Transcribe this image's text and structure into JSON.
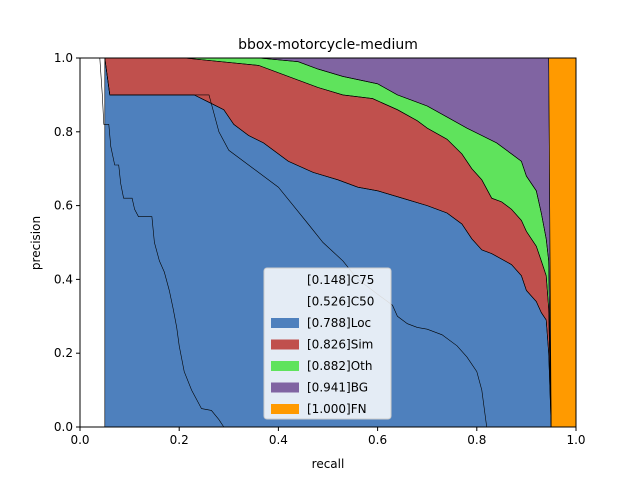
{
  "chart_data": {
    "type": "area",
    "title": "bbox-motorcycle-medium",
    "xlabel": "recall",
    "ylabel": "precision",
    "xlim": [
      0,
      1
    ],
    "ylim": [
      0,
      1
    ],
    "xticks": [
      "0.0",
      "0.2",
      "0.4",
      "0.6",
      "0.8",
      "1.0"
    ],
    "yticks": [
      "0.0",
      "0.2",
      "0.4",
      "0.6",
      "0.8",
      "1.0"
    ],
    "legend_position": "lower center",
    "series": [
      {
        "name": "[0.148]C75",
        "fill": null,
        "points": [
          [
            0.04,
            1.0
          ],
          [
            0.045,
            0.9
          ],
          [
            0.048,
            0.82
          ],
          [
            0.058,
            0.82
          ],
          [
            0.062,
            0.76
          ],
          [
            0.07,
            0.71
          ],
          [
            0.078,
            0.71
          ],
          [
            0.082,
            0.66
          ],
          [
            0.088,
            0.62
          ],
          [
            0.105,
            0.62
          ],
          [
            0.11,
            0.59
          ],
          [
            0.118,
            0.57
          ],
          [
            0.145,
            0.57
          ],
          [
            0.15,
            0.5
          ],
          [
            0.16,
            0.45
          ],
          [
            0.17,
            0.42
          ],
          [
            0.18,
            0.37
          ],
          [
            0.188,
            0.32
          ],
          [
            0.195,
            0.27
          ],
          [
            0.2,
            0.22
          ],
          [
            0.21,
            0.15
          ],
          [
            0.225,
            0.1
          ],
          [
            0.245,
            0.05
          ],
          [
            0.265,
            0.045
          ],
          [
            0.28,
            0.02
          ],
          [
            0.29,
            0.0
          ]
        ]
      },
      {
        "name": "[0.526]C50",
        "fill": null,
        "points": [
          [
            0.05,
            1.0
          ],
          [
            0.06,
            0.9
          ],
          [
            0.26,
            0.9
          ],
          [
            0.28,
            0.8
          ],
          [
            0.3,
            0.75
          ],
          [
            0.35,
            0.7
          ],
          [
            0.4,
            0.65
          ],
          [
            0.43,
            0.6
          ],
          [
            0.46,
            0.55
          ],
          [
            0.49,
            0.5
          ],
          [
            0.53,
            0.45
          ],
          [
            0.56,
            0.4
          ],
          [
            0.58,
            0.38
          ],
          [
            0.6,
            0.36
          ],
          [
            0.62,
            0.34
          ],
          [
            0.63,
            0.33
          ],
          [
            0.64,
            0.3
          ],
          [
            0.65,
            0.29
          ],
          [
            0.66,
            0.28
          ],
          [
            0.68,
            0.27
          ],
          [
            0.7,
            0.265
          ],
          [
            0.73,
            0.25
          ],
          [
            0.76,
            0.22
          ],
          [
            0.78,
            0.19
          ],
          [
            0.8,
            0.15
          ],
          [
            0.81,
            0.1
          ],
          [
            0.82,
            0.0
          ]
        ]
      },
      {
        "name": "[0.788]Loc",
        "color": "#4e80bd",
        "points": [
          [
            0.05,
            1.0
          ],
          [
            0.06,
            0.9
          ],
          [
            0.26,
            0.9
          ],
          [
            0.28,
            0.8
          ],
          [
            0.3,
            0.75
          ],
          [
            0.35,
            0.7
          ],
          [
            0.4,
            0.65
          ],
          [
            0.43,
            0.6
          ],
          [
            0.46,
            0.55
          ],
          [
            0.49,
            0.5
          ],
          [
            0.53,
            0.45
          ],
          [
            0.56,
            0.4
          ],
          [
            0.58,
            0.38
          ],
          [
            0.6,
            0.36
          ],
          [
            0.62,
            0.34
          ],
          [
            0.63,
            0.33
          ],
          [
            0.64,
            0.3
          ],
          [
            0.65,
            0.29
          ],
          [
            0.66,
            0.28
          ],
          [
            0.68,
            0.27
          ],
          [
            0.7,
            0.265
          ],
          [
            0.73,
            0.25
          ],
          [
            0.76,
            0.22
          ],
          [
            0.78,
            0.19
          ],
          [
            0.8,
            0.15
          ],
          [
            0.81,
            0.1
          ],
          [
            0.82,
            0.0
          ]
        ],
        "upper": [
          [
            0.05,
            1.0
          ],
          [
            0.06,
            0.9
          ],
          [
            0.23,
            0.9
          ],
          [
            0.26,
            0.88
          ],
          [
            0.29,
            0.86
          ],
          [
            0.31,
            0.82
          ],
          [
            0.34,
            0.79
          ],
          [
            0.37,
            0.77
          ],
          [
            0.42,
            0.72
          ],
          [
            0.47,
            0.69
          ],
          [
            0.52,
            0.67
          ],
          [
            0.56,
            0.65
          ],
          [
            0.6,
            0.64
          ],
          [
            0.65,
            0.62
          ],
          [
            0.7,
            0.6
          ],
          [
            0.74,
            0.58
          ],
          [
            0.77,
            0.55
          ],
          [
            0.79,
            0.51
          ],
          [
            0.81,
            0.48
          ],
          [
            0.83,
            0.47
          ],
          [
            0.87,
            0.44
          ],
          [
            0.89,
            0.41
          ],
          [
            0.9,
            0.37
          ],
          [
            0.92,
            0.34
          ],
          [
            0.93,
            0.31
          ],
          [
            0.94,
            0.29
          ],
          [
            0.945,
            0.2
          ],
          [
            0.95,
            0.0
          ]
        ]
      },
      {
        "name": "[0.826]Sim",
        "color": "#c0504d",
        "upper": [
          [
            0.05,
            1.0
          ],
          [
            0.06,
            1.0
          ],
          [
            0.21,
            1.0
          ],
          [
            0.36,
            0.98
          ],
          [
            0.44,
            0.94
          ],
          [
            0.48,
            0.92
          ],
          [
            0.53,
            0.9
          ],
          [
            0.59,
            0.89
          ],
          [
            0.64,
            0.86
          ],
          [
            0.68,
            0.83
          ],
          [
            0.7,
            0.81
          ],
          [
            0.74,
            0.78
          ],
          [
            0.77,
            0.74
          ],
          [
            0.79,
            0.7
          ],
          [
            0.81,
            0.67
          ],
          [
            0.83,
            0.62
          ],
          [
            0.85,
            0.61
          ],
          [
            0.87,
            0.59
          ],
          [
            0.89,
            0.56
          ],
          [
            0.9,
            0.53
          ],
          [
            0.92,
            0.49
          ],
          [
            0.93,
            0.45
          ],
          [
            0.94,
            0.41
          ],
          [
            0.945,
            0.32
          ],
          [
            0.95,
            0.0
          ]
        ]
      },
      {
        "name": "[0.882]Oth",
        "color": "#5fe35c",
        "upper": [
          [
            0.05,
            1.0
          ],
          [
            0.2,
            1.0
          ],
          [
            0.36,
            1.0
          ],
          [
            0.44,
            0.99
          ],
          [
            0.48,
            0.97
          ],
          [
            0.53,
            0.95
          ],
          [
            0.6,
            0.93
          ],
          [
            0.64,
            0.9
          ],
          [
            0.7,
            0.87
          ],
          [
            0.74,
            0.84
          ],
          [
            0.78,
            0.81
          ],
          [
            0.81,
            0.79
          ],
          [
            0.84,
            0.77
          ],
          [
            0.87,
            0.74
          ],
          [
            0.89,
            0.72
          ],
          [
            0.9,
            0.68
          ],
          [
            0.92,
            0.64
          ],
          [
            0.93,
            0.58
          ],
          [
            0.94,
            0.51
          ],
          [
            0.945,
            0.45
          ],
          [
            0.95,
            0.0
          ]
        ]
      },
      {
        "name": "[0.941]BG",
        "color": "#8064a2",
        "upper": [
          [
            0.05,
            1.0
          ],
          [
            0.945,
            1.0
          ],
          [
            0.95,
            0.0
          ]
        ]
      },
      {
        "name": "[1.000]FN",
        "color": "#ff9a00",
        "upper": [
          [
            0.945,
            1.0
          ],
          [
            1.0,
            1.0
          ],
          [
            1.0,
            0.0
          ],
          [
            0.95,
            0.0
          ]
        ]
      }
    ]
  }
}
